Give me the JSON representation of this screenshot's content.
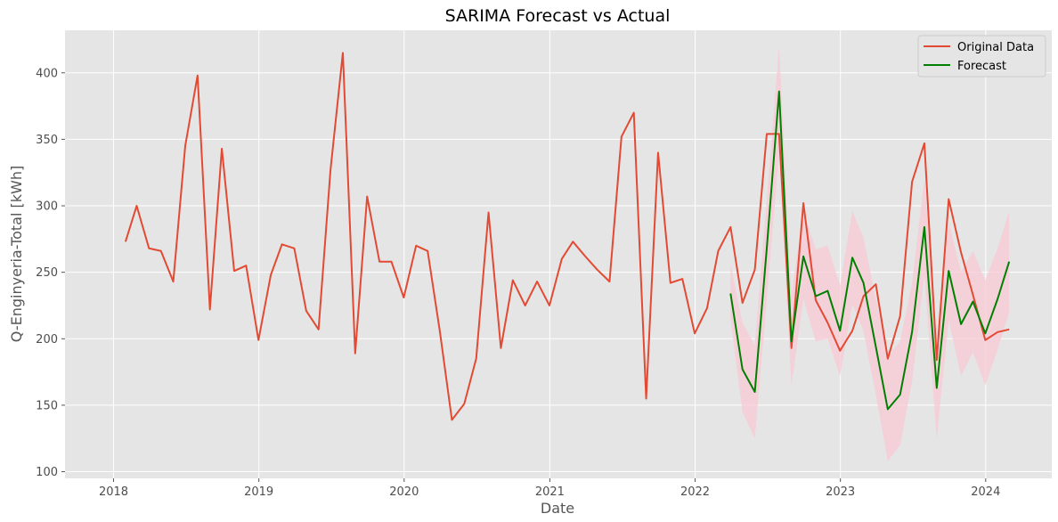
{
  "chart_data": {
    "type": "line",
    "title": "SARIMA Forecast vs Actual",
    "xlabel": "Date",
    "ylabel": "Q-Enginyeria-Total [kWh]",
    "xlim": [
      "2017-09-01",
      "2024-06-15"
    ],
    "ylim": [
      95,
      432
    ],
    "x_ticks": [
      "2018",
      "2019",
      "2020",
      "2021",
      "2022",
      "2023",
      "2024"
    ],
    "y_ticks": [
      100,
      150,
      200,
      250,
      300,
      350,
      400
    ],
    "grid": true,
    "legend_position": "top-right",
    "colors": {
      "background": "#e5e5e5",
      "grid": "#ffffff",
      "original": "#e24a33",
      "forecast": "#008000",
      "confidence_band": "#f8c8d4"
    },
    "series": [
      {
        "name": "Original Data",
        "color": "#e24a33",
        "points": [
          [
            "2018-01-31",
            273
          ],
          [
            "2018-02-28",
            300
          ],
          [
            "2018-03-31",
            268
          ],
          [
            "2018-04-30",
            266
          ],
          [
            "2018-05-31",
            243
          ],
          [
            "2018-06-30",
            345
          ],
          [
            "2018-07-31",
            398
          ],
          [
            "2018-08-31",
            222
          ],
          [
            "2018-09-30",
            343
          ],
          [
            "2018-10-31",
            251
          ],
          [
            "2018-11-30",
            255
          ],
          [
            "2018-12-31",
            199
          ],
          [
            "2019-01-31",
            248
          ],
          [
            "2019-02-28",
            271
          ],
          [
            "2019-03-31",
            268
          ],
          [
            "2019-04-30",
            221
          ],
          [
            "2019-05-31",
            207
          ],
          [
            "2019-06-30",
            327
          ],
          [
            "2019-07-31",
            415
          ],
          [
            "2019-08-31",
            189
          ],
          [
            "2019-09-30",
            307
          ],
          [
            "2019-10-31",
            258
          ],
          [
            "2019-11-30",
            258
          ],
          [
            "2019-12-31",
            231
          ],
          [
            "2020-01-31",
            270
          ],
          [
            "2020-02-29",
            266
          ],
          [
            "2020-03-31",
            205
          ],
          [
            "2020-04-30",
            139
          ],
          [
            "2020-05-31",
            151
          ],
          [
            "2020-06-30",
            185
          ],
          [
            "2020-07-31",
            295
          ],
          [
            "2020-08-31",
            193
          ],
          [
            "2020-09-30",
            244
          ],
          [
            "2020-10-31",
            225
          ],
          [
            "2020-11-30",
            243
          ],
          [
            "2020-12-31",
            225
          ],
          [
            "2021-01-31",
            260
          ],
          [
            "2021-02-28",
            273
          ],
          [
            "2021-03-31",
            262
          ],
          [
            "2021-04-30",
            252
          ],
          [
            "2021-05-31",
            243
          ],
          [
            "2021-06-30",
            352
          ],
          [
            "2021-07-31",
            370
          ],
          [
            "2021-08-31",
            155
          ],
          [
            "2021-09-30",
            340
          ],
          [
            "2021-10-31",
            242
          ],
          [
            "2021-11-30",
            245
          ],
          [
            "2021-12-31",
            204
          ],
          [
            "2022-01-31",
            223
          ],
          [
            "2022-02-28",
            266
          ],
          [
            "2022-03-31",
            284
          ],
          [
            "2022-04-30",
            227
          ],
          [
            "2022-05-31",
            252
          ],
          [
            "2022-06-30",
            354
          ],
          [
            "2022-07-31",
            354
          ],
          [
            "2022-08-31",
            193
          ],
          [
            "2022-09-30",
            302
          ],
          [
            "2022-10-31",
            229
          ],
          [
            "2022-11-30",
            212
          ],
          [
            "2022-12-31",
            191
          ],
          [
            "2023-01-31",
            206
          ],
          [
            "2023-02-28",
            232
          ],
          [
            "2023-03-31",
            241
          ],
          [
            "2023-04-30",
            185
          ],
          [
            "2023-05-31",
            217
          ],
          [
            "2023-06-30",
            318
          ],
          [
            "2023-07-31",
            347
          ],
          [
            "2023-08-31",
            184
          ],
          [
            "2023-09-30",
            305
          ],
          [
            "2023-10-31",
            265
          ],
          [
            "2023-11-30",
            233
          ],
          [
            "2023-12-31",
            199
          ],
          [
            "2024-01-31",
            205
          ],
          [
            "2024-02-29",
            207
          ]
        ]
      },
      {
        "name": "Forecast",
        "color": "#008000",
        "points": [
          [
            "2022-03-31",
            234
          ],
          [
            "2022-04-30",
            177
          ],
          [
            "2022-05-31",
            160
          ],
          [
            "2022-06-30",
            268
          ],
          [
            "2022-07-31",
            386
          ],
          [
            "2022-08-31",
            198
          ],
          [
            "2022-09-30",
            262
          ],
          [
            "2022-10-31",
            232
          ],
          [
            "2022-11-30",
            236
          ],
          [
            "2022-12-31",
            206
          ],
          [
            "2023-01-31",
            261
          ],
          [
            "2023-02-28",
            242
          ],
          [
            "2023-03-31",
            194
          ],
          [
            "2023-04-30",
            147
          ],
          [
            "2023-05-31",
            158
          ],
          [
            "2023-06-30",
            205
          ],
          [
            "2023-07-31",
            284
          ],
          [
            "2023-08-31",
            163
          ],
          [
            "2023-09-30",
            251
          ],
          [
            "2023-10-31",
            211
          ],
          [
            "2023-11-30",
            228
          ],
          [
            "2023-12-31",
            204
          ],
          [
            "2024-01-31",
            230
          ],
          [
            "2024-02-29",
            258
          ]
        ],
        "lower": [
          215,
          145,
          125,
          230,
          340,
          165,
          230,
          198,
          200,
          172,
          226,
          206,
          158,
          108,
          120,
          168,
          248,
          125,
          214,
          172,
          190,
          165,
          192,
          220
        ],
        "upper": [
          256,
          212,
          195,
          305,
          420,
          232,
          296,
          267,
          270,
          240,
          296,
          276,
          230,
          187,
          198,
          242,
          320,
          200,
          288,
          250,
          266,
          244,
          268,
          296
        ]
      }
    ]
  }
}
